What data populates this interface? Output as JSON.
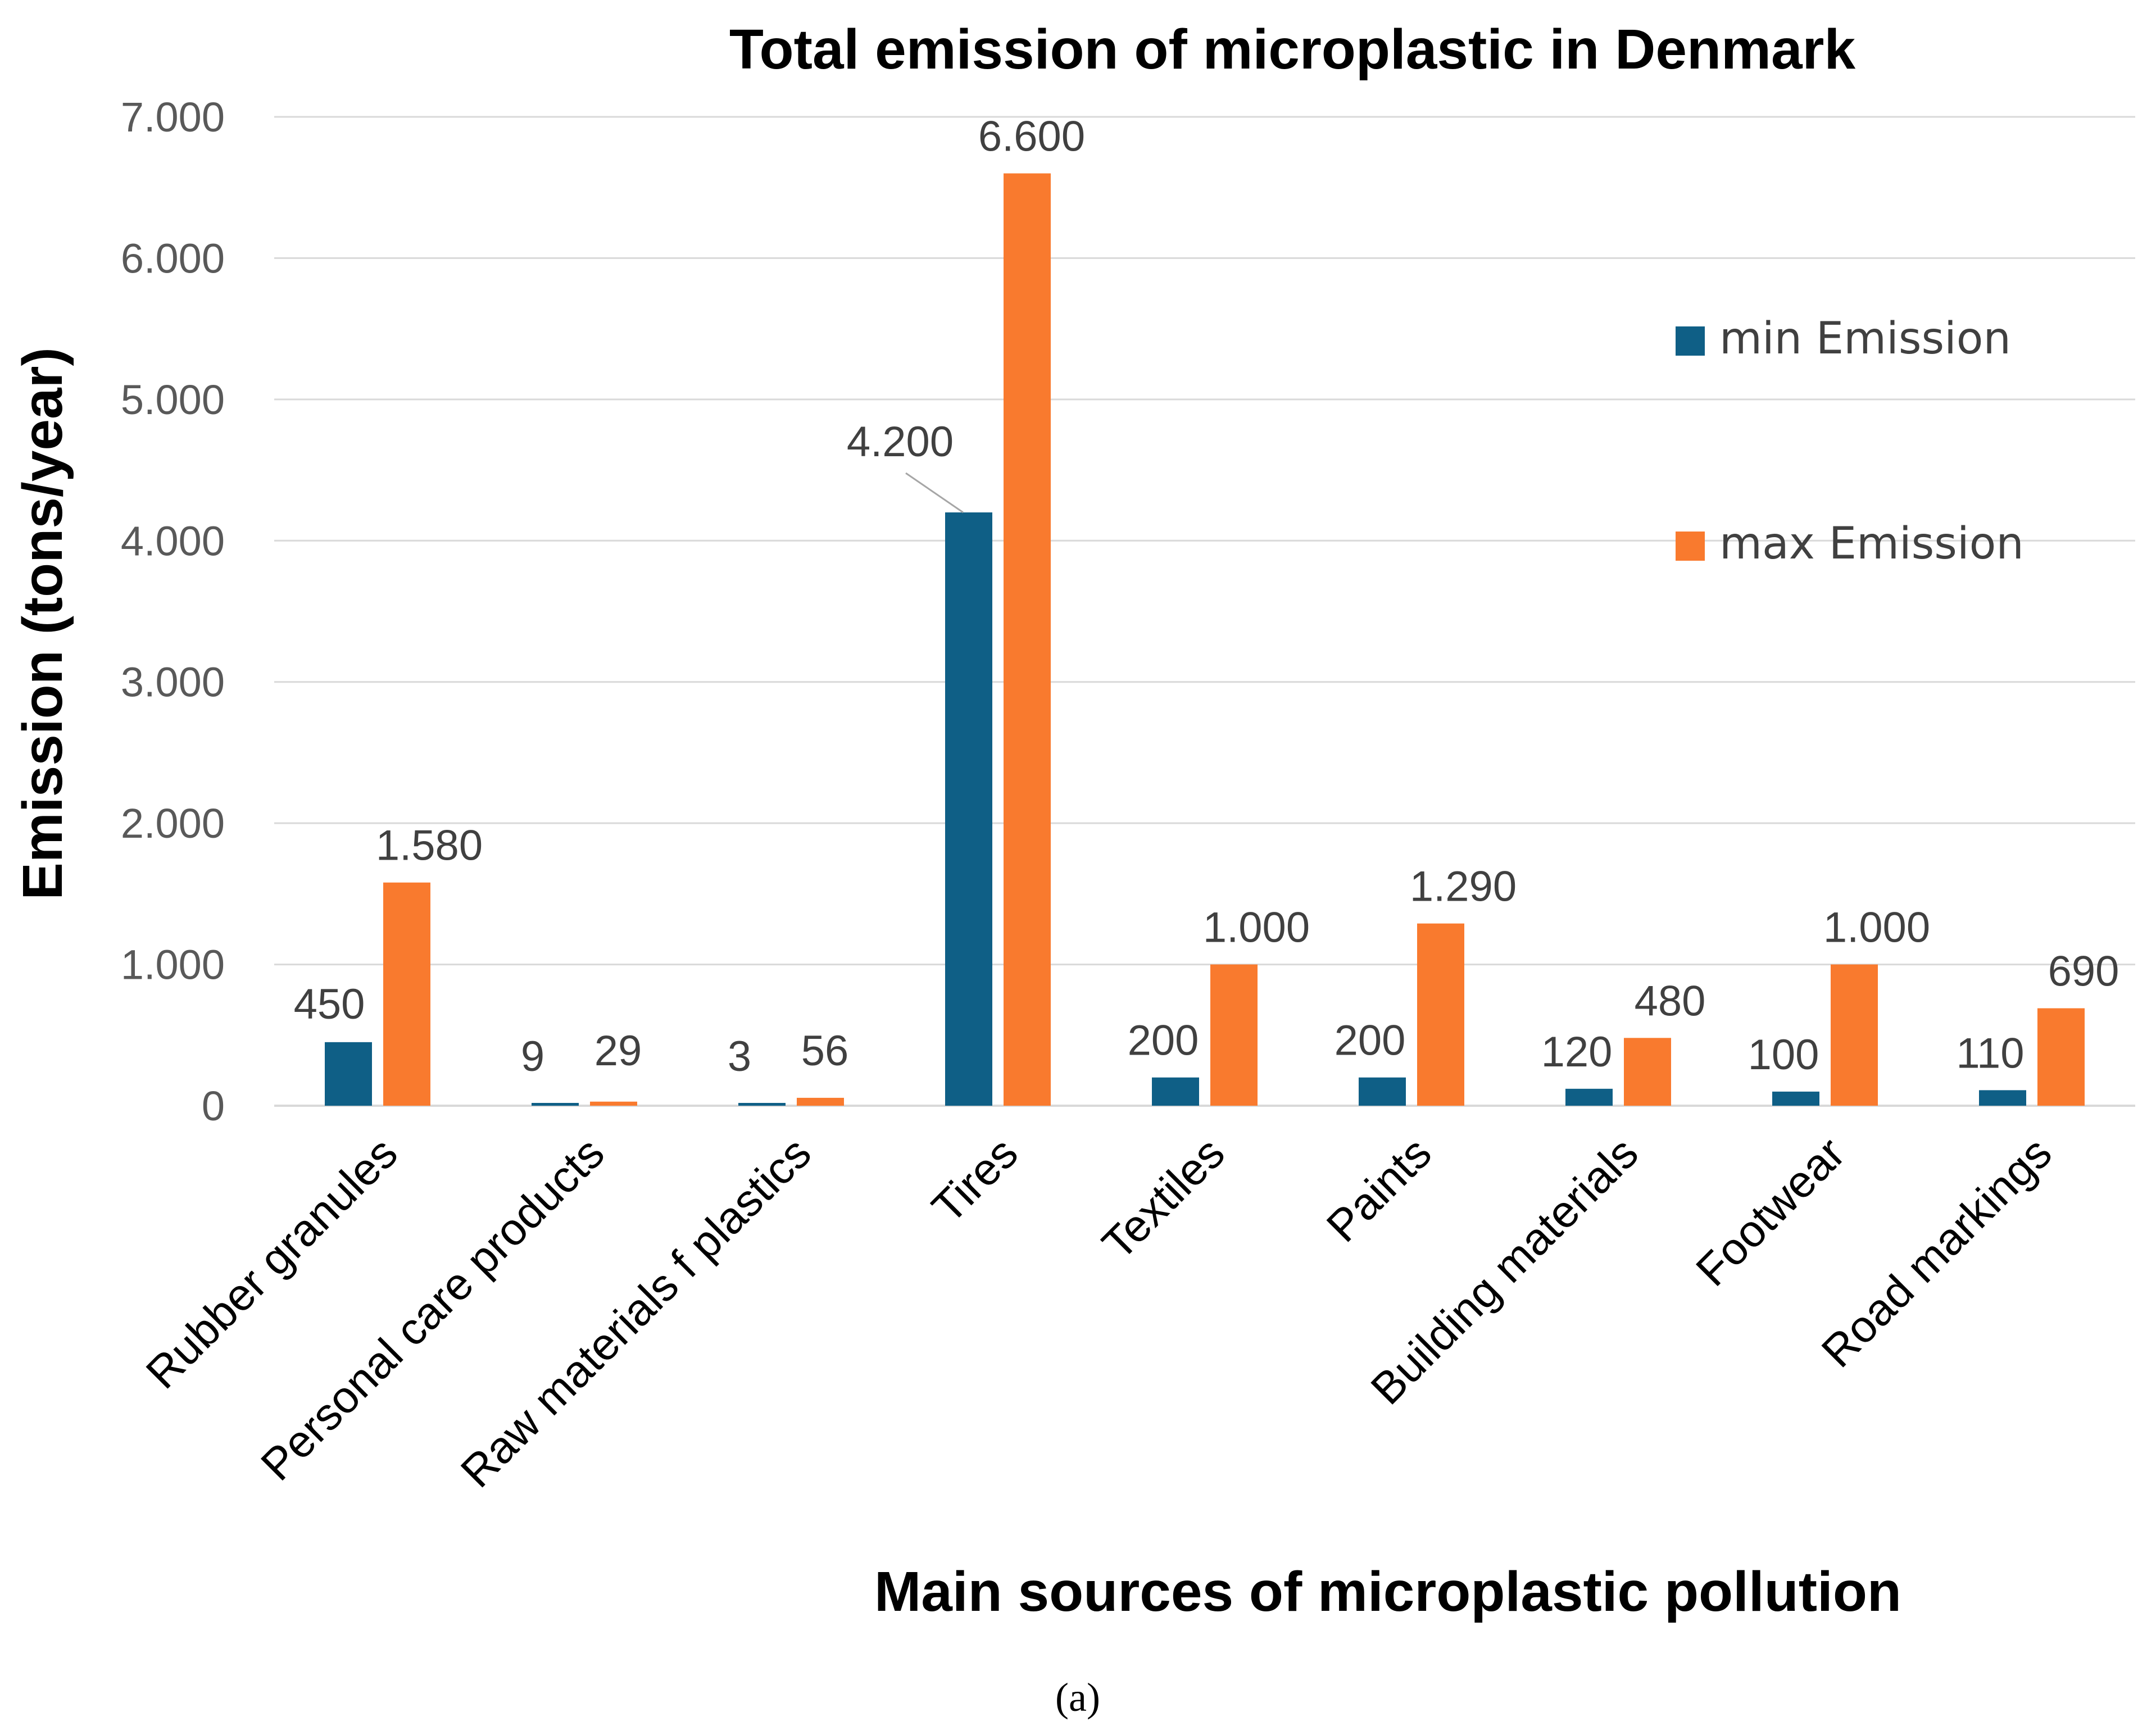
{
  "chart_data": {
    "type": "bar",
    "title": "Total emission of microplastic in Denmark",
    "xlabel": "Main sources of microplastic pollution",
    "ylabel": "Emission (tons/year)",
    "ylim": [
      0,
      7000
    ],
    "yticks": [
      0,
      1000,
      2000,
      3000,
      4000,
      5000,
      6000,
      7000
    ],
    "ytick_labels": [
      "0",
      "1.000",
      "2.000",
      "3.000",
      "4.000",
      "5.000",
      "6.000",
      "7.000"
    ],
    "grid": true,
    "legend_position": "right",
    "categories": [
      "Rubber granules",
      "Personal care products",
      "Raw materials f plastics",
      "Tires",
      "Textiles",
      "Paints",
      "Building materials",
      "Footwear",
      "Road markings"
    ],
    "series": [
      {
        "name": "min Emission",
        "color": "#0f5f86",
        "values": [
          450,
          9,
          3,
          4200,
          200,
          200,
          120,
          100,
          110
        ],
        "labels": [
          "450",
          "9",
          "3",
          "4.200",
          "200",
          "200",
          "120",
          "100",
          "110"
        ]
      },
      {
        "name": "max Emission",
        "color": "#f97a2e",
        "values": [
          1580,
          29,
          56,
          6600,
          1000,
          1290,
          480,
          1000,
          690
        ],
        "labels": [
          "1.580",
          "29",
          "56",
          "6.600",
          "1.000",
          "1.290",
          "480",
          "1.000",
          "690"
        ]
      }
    ]
  },
  "caption": "(a)"
}
